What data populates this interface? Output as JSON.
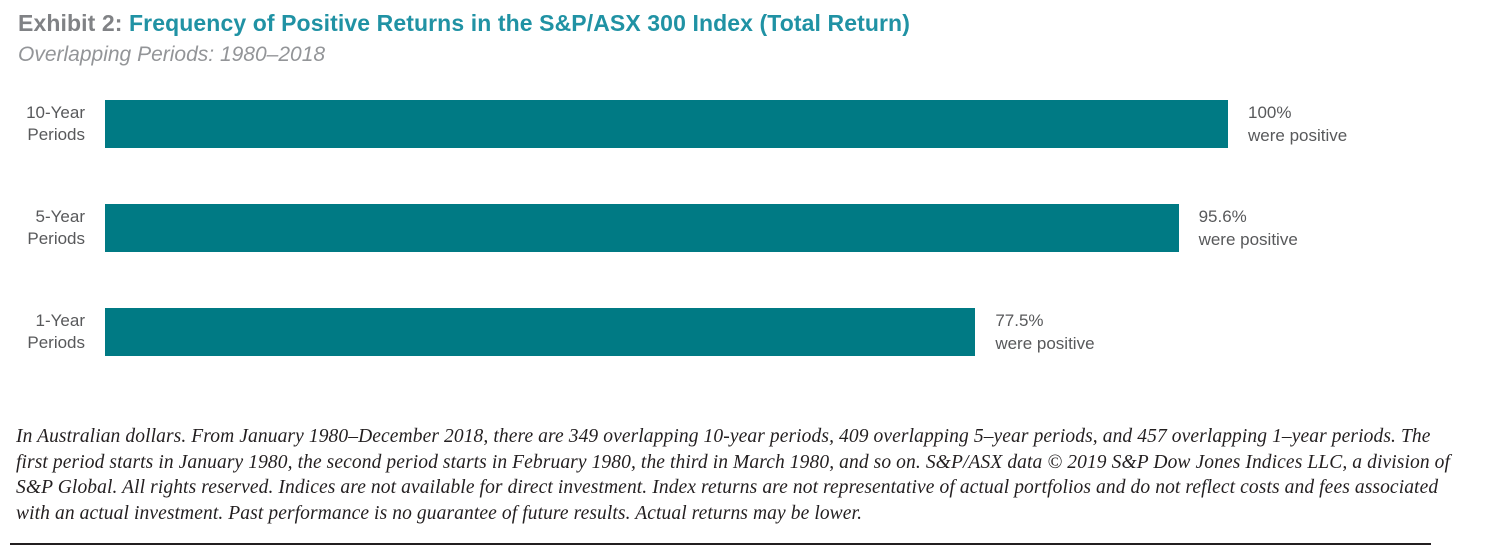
{
  "header": {
    "exhibit_label": "Exhibit 2:",
    "title": "Frequency of Positive Returns in the S&P/ASX 300 Index (Total Return)",
    "subtitle": "Overlapping Periods: 1980–2018"
  },
  "chart_data": {
    "type": "bar",
    "orientation": "horizontal",
    "title": "Frequency of Positive Returns in the S&P/ASX 300 Index (Total Return)",
    "subtitle": "Overlapping Periods: 1980–2018",
    "categories": [
      "10-Year Periods",
      "5-Year Periods",
      "1-Year Periods"
    ],
    "values": [
      100,
      95.6,
      77.5
    ],
    "xlim": [
      0,
      100
    ],
    "grid": false,
    "legend": false,
    "bar_color": "#007A84",
    "rows": [
      {
        "label_line1": "10-Year",
        "label_line2": "Periods",
        "value": 100,
        "value_label": "100%",
        "caption": "were positive"
      },
      {
        "label_line1": "5-Year",
        "label_line2": "Periods",
        "value": 95.6,
        "value_label": "95.6%",
        "caption": "were positive"
      },
      {
        "label_line1": "1-Year",
        "label_line2": "Periods",
        "value": 77.5,
        "value_label": "77.5%",
        "caption": "were positive"
      }
    ]
  },
  "footnote": {
    "text": "In Australian dollars. From January 1980–December 2018, there are 349 overlapping 10-year periods, 409 overlapping 5–year periods, and 457 overlapping 1–year periods. The first period starts in January 1980, the second period starts in February 1980, the third in March 1980, and so on. S&P/ASX data © 2019 S&P Dow Jones Indices LLC, a division of S&P Global. All rights reserved. Indices are not available for direct investment. Index returns are not representative of actual portfolios and do not reflect costs and fees associated with an actual investment. Past performance is no guarantee of future results. Actual returns may be lower."
  },
  "colors": {
    "bar": "#007A84",
    "title_teal": "#2092A4",
    "exhibit_gray": "#808285",
    "subtitle_gray": "#939598",
    "label_gray": "#58595B",
    "text_black": "#231F20"
  }
}
